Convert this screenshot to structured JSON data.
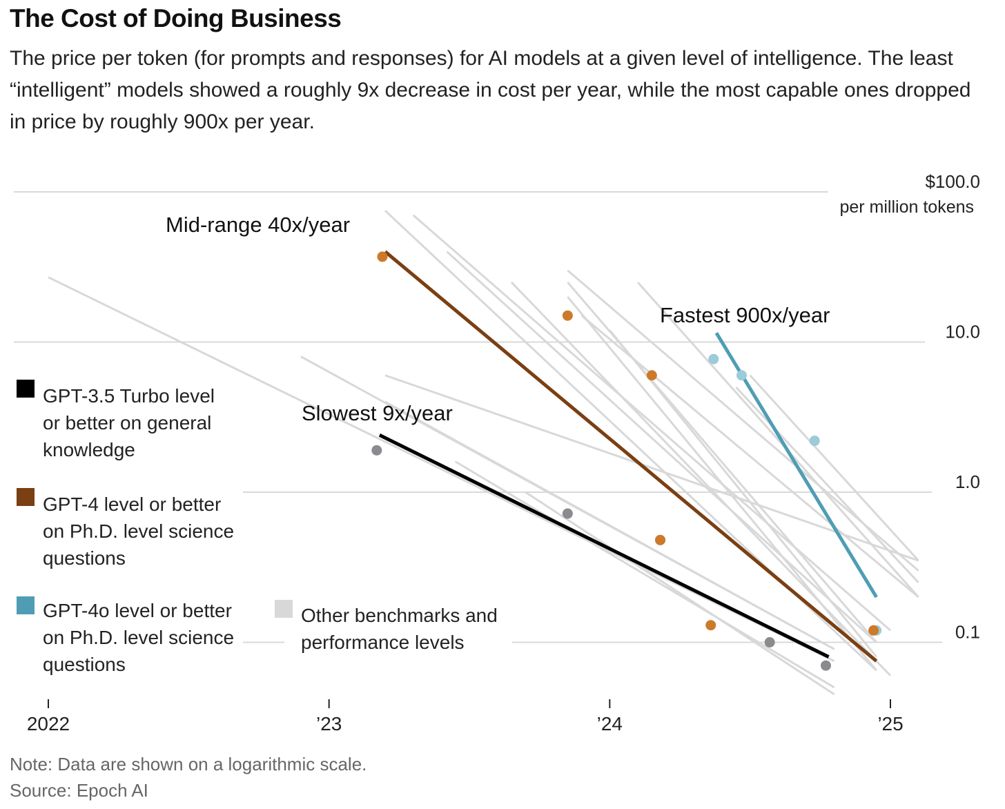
{
  "title": "The Cost of Doing Business",
  "subtitle": "The price per token (for prompts and responses) for AI models at a given level of intelligence. The least “intelligent” models showed a roughly 9x decrease in cost per year, while the most capable ones dropped in price by roughly 900x per year.",
  "note": "Note: Data are shown on a logarithmic scale.",
  "source": "Source: Epoch AI",
  "colors": {
    "gpt35": "#000000",
    "gpt4": "#7a3f12",
    "gpt4o": "#4f9db4",
    "other": "#d8d8d8",
    "dot_gpt35": "#8a8a8f",
    "dot_gpt4": "#cc7a2a",
    "dot_gpt4o": "#9ccbd9",
    "grid": "#d9d9d9"
  },
  "legend": {
    "gpt35": "GPT-3.5 Turbo level or better on general knowledge",
    "gpt35_lines": [
      "GPT-3.5 Turbo level",
      "or better on general",
      "knowledge"
    ],
    "gpt4": "GPT-4 level or better on Ph.D. level science questions",
    "gpt4_lines": [
      "GPT-4 level or better",
      "on Ph.D. level science",
      "questions"
    ],
    "gpt4o": "GPT-4o level or better on Ph.D. level science questions",
    "gpt4o_lines": [
      "GPT-4o level or better",
      "on Ph.D. level science",
      "questions"
    ],
    "other": "Other benchmarks and performance levels",
    "other_lines": [
      "Other benchmarks and",
      "performance levels"
    ]
  },
  "chart_data": {
    "type": "scatter",
    "y_scale": "log",
    "ylabel": "per million tokens",
    "y_ticks": [
      {
        "value": 100,
        "label": "$100.0"
      },
      {
        "value": 10,
        "label": "10.0"
      },
      {
        "value": 1,
        "label": "1.0"
      },
      {
        "value": 0.1,
        "label": "0.1"
      }
    ],
    "y_range": [
      0.035,
      100
    ],
    "x_range": [
      2022.0,
      2025.3
    ],
    "x_ticks": [
      {
        "value": 2022,
        "label": "2022"
      },
      {
        "value": 2023,
        "label": "’23"
      },
      {
        "value": 2024,
        "label": "’24"
      },
      {
        "value": 2025,
        "label": "’25"
      }
    ],
    "annotations": [
      {
        "text": "Mid-range 40x/year",
        "series": "gpt4"
      },
      {
        "text": "Fastest 900x/year",
        "series": "gpt4o"
      },
      {
        "text": "Slowest 9x/year",
        "series": "gpt35"
      }
    ],
    "series": [
      {
        "key": "gpt35",
        "trend": [
          {
            "x": 2023.18,
            "y": 2.4
          },
          {
            "x": 2024.78,
            "y": 0.08
          }
        ],
        "points": [
          {
            "x": 2023.17,
            "y": 1.9
          },
          {
            "x": 2023.85,
            "y": 0.72
          },
          {
            "x": 2024.18,
            "y": 0.48
          },
          {
            "x": 2024.57,
            "y": 0.1
          },
          {
            "x": 2024.77,
            "y": 0.07
          }
        ]
      },
      {
        "key": "gpt4",
        "trend": [
          {
            "x": 2023.2,
            "y": 40
          },
          {
            "x": 2024.95,
            "y": 0.075
          }
        ],
        "points": [
          {
            "x": 2023.19,
            "y": 37
          },
          {
            "x": 2023.85,
            "y": 15
          },
          {
            "x": 2024.15,
            "y": 6
          },
          {
            "x": 2024.18,
            "y": 0.48
          },
          {
            "x": 2024.36,
            "y": 0.13
          },
          {
            "x": 2024.94,
            "y": 0.12
          }
        ]
      },
      {
        "key": "gpt4o",
        "trend": [
          {
            "x": 2024.38,
            "y": 11.5
          },
          {
            "x": 2024.95,
            "y": 0.2
          }
        ],
        "points": [
          {
            "x": 2024.37,
            "y": 7.7
          },
          {
            "x": 2024.47,
            "y": 6
          },
          {
            "x": 2024.73,
            "y": 2.2
          },
          {
            "x": 2024.95,
            "y": 0.12
          }
        ]
      },
      {
        "key": "other",
        "lines": [
          [
            {
              "x": 2022.0,
              "y": 27
            },
            {
              "x": 2024.8,
              "y": 0.075
            }
          ],
          [
            {
              "x": 2022.9,
              "y": 8
            },
            {
              "x": 2024.8,
              "y": 0.09
            }
          ],
          [
            {
              "x": 2023.2,
              "y": 4
            },
            {
              "x": 2024.8,
              "y": 0.09
            }
          ],
          [
            {
              "x": 2023.45,
              "y": 1.6
            },
            {
              "x": 2024.8,
              "y": 0.05
            }
          ],
          [
            {
              "x": 2023.7,
              "y": 1
            },
            {
              "x": 2024.8,
              "y": 0.045
            }
          ],
          [
            {
              "x": 2023.2,
              "y": 75
            },
            {
              "x": 2024.95,
              "y": 0.065
            }
          ],
          [
            {
              "x": 2023.3,
              "y": 70
            },
            {
              "x": 2025.0,
              "y": 0.12
            }
          ],
          [
            {
              "x": 2023.42,
              "y": 40
            },
            {
              "x": 2024.95,
              "y": 0.1
            }
          ],
          [
            {
              "x": 2023.65,
              "y": 25
            },
            {
              "x": 2025.0,
              "y": 0.06
            }
          ],
          [
            {
              "x": 2023.85,
              "y": 30
            },
            {
              "x": 2025.1,
              "y": 0.3
            }
          ],
          [
            {
              "x": 2023.85,
              "y": 25
            },
            {
              "x": 2024.95,
              "y": 0.1
            }
          ],
          [
            {
              "x": 2023.85,
              "y": 20
            },
            {
              "x": 2024.95,
              "y": 0.065
            }
          ],
          [
            {
              "x": 2023.9,
              "y": 15
            },
            {
              "x": 2025.1,
              "y": 0.2
            }
          ],
          [
            {
              "x": 2024.0,
              "y": 12
            },
            {
              "x": 2024.95,
              "y": 0.08
            }
          ],
          [
            {
              "x": 2024.1,
              "y": 25
            },
            {
              "x": 2025.1,
              "y": 0.2
            }
          ],
          [
            {
              "x": 2024.45,
              "y": 5
            },
            {
              "x": 2025.1,
              "y": 0.25
            }
          ],
          [
            {
              "x": 2024.5,
              "y": 6
            },
            {
              "x": 2025.1,
              "y": 0.35
            }
          ],
          [
            {
              "x": 2023.2,
              "y": 6
            },
            {
              "x": 2025.1,
              "y": 0.35
            }
          ]
        ]
      }
    ]
  }
}
